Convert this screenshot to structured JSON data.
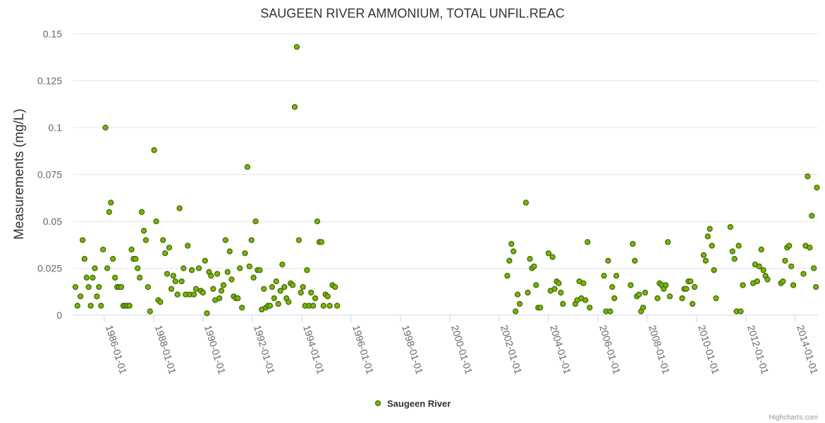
{
  "chart_data": {
    "type": "scatter",
    "title": "SAUGEEN RIVER AMMONIUM, TOTAL UNFIL.REAC",
    "ylabel": "Measurements (mg/L)",
    "xlabel": "",
    "ylim": [
      0,
      0.15
    ],
    "xlim": [
      "1984-10-01",
      "2014-12-01"
    ],
    "y_ticks": [
      "0",
      "0.025",
      "0.05",
      "0.075",
      "0.1",
      "0.125",
      "0.15"
    ],
    "x_ticks": [
      "1986-01-01",
      "1988-01-01",
      "1990-01-01",
      "1992-01-01",
      "1994-01-01",
      "1996-01-01",
      "1998-01-01",
      "2000-01-01",
      "2002-01-01",
      "2004-01-01",
      "2006-01-01",
      "2008-01-01",
      "2010-01-01",
      "2012-01-01",
      "2014-01-01"
    ],
    "grid": true,
    "legend_position": "bottom-center",
    "series": [
      {
        "name": "Saugeen River",
        "color": "#7cb50a",
        "edge_color": "#3f6b00",
        "points": [
          [
            "1984-11-01",
            0.015
          ],
          [
            "1984-12-01",
            0.005
          ],
          [
            "1985-01-15",
            0.01
          ],
          [
            "1985-02-15",
            0.04
          ],
          [
            "1985-03-15",
            0.03
          ],
          [
            "1985-04-15",
            0.02
          ],
          [
            "1985-05-15",
            0.015
          ],
          [
            "1985-06-15",
            0.005
          ],
          [
            "1985-07-15",
            0.02
          ],
          [
            "1985-08-15",
            0.025
          ],
          [
            "1985-09-15",
            0.01
          ],
          [
            "1985-10-15",
            0.015
          ],
          [
            "1985-11-15",
            0.005
          ],
          [
            "1985-12-15",
            0.035
          ],
          [
            "1986-01-20",
            0.1
          ],
          [
            "1986-02-15",
            0.025
          ],
          [
            "1986-03-15",
            0.055
          ],
          [
            "1986-04-10",
            0.06
          ],
          [
            "1986-05-10",
            0.03
          ],
          [
            "1986-06-10",
            0.02
          ],
          [
            "1986-07-10",
            0.015
          ],
          [
            "1986-08-10",
            0.015
          ],
          [
            "1986-09-10",
            0.015
          ],
          [
            "1986-10-10",
            0.005
          ],
          [
            "1986-11-10",
            0.005
          ],
          [
            "1986-12-10",
            0.005
          ],
          [
            "1987-01-10",
            0.005
          ],
          [
            "1987-02-10",
            0.035
          ],
          [
            "1987-03-10",
            0.03
          ],
          [
            "1987-04-10",
            0.03
          ],
          [
            "1987-05-10",
            0.025
          ],
          [
            "1987-06-10",
            0.02
          ],
          [
            "1987-07-10",
            0.055
          ],
          [
            "1987-08-10",
            0.045
          ],
          [
            "1987-09-10",
            0.04
          ],
          [
            "1987-10-10",
            0.015
          ],
          [
            "1987-11-10",
            0.002
          ],
          [
            "1988-01-10",
            0.088
          ],
          [
            "1988-02-10",
            0.05
          ],
          [
            "1988-03-10",
            0.008
          ],
          [
            "1988-04-10",
            0.007
          ],
          [
            "1988-05-20",
            0.04
          ],
          [
            "1988-06-20",
            0.033
          ],
          [
            "1988-07-20",
            0.022
          ],
          [
            "1988-08-20",
            0.036
          ],
          [
            "1988-09-20",
            0.014
          ],
          [
            "1988-10-20",
            0.021
          ],
          [
            "1988-11-20",
            0.018
          ],
          [
            "1988-12-20",
            0.011
          ],
          [
            "1989-01-20",
            0.057
          ],
          [
            "1989-02-20",
            0.018
          ],
          [
            "1989-03-20",
            0.025
          ],
          [
            "1989-04-20",
            0.011
          ],
          [
            "1989-05-20",
            0.037
          ],
          [
            "1989-06-20",
            0.011
          ],
          [
            "1989-07-20",
            0.024
          ],
          [
            "1989-08-20",
            0.011
          ],
          [
            "1989-09-20",
            0.014
          ],
          [
            "1989-11-01",
            0.025
          ],
          [
            "1989-12-01",
            0.013
          ],
          [
            "1990-01-01",
            0.012
          ],
          [
            "1990-02-01",
            0.029
          ],
          [
            "1990-03-01",
            0.001
          ],
          [
            "1990-04-01",
            0.023
          ],
          [
            "1990-05-01",
            0.021
          ],
          [
            "1990-06-01",
            0.014
          ],
          [
            "1990-07-01",
            0.008
          ],
          [
            "1990-08-01",
            0.022
          ],
          [
            "1990-09-01",
            0.009
          ],
          [
            "1990-10-01",
            0.013
          ],
          [
            "1990-11-01",
            0.016
          ],
          [
            "1990-12-01",
            0.04
          ],
          [
            "1991-01-01",
            0.023
          ],
          [
            "1991-02-01",
            0.034
          ],
          [
            "1991-03-01",
            0.019
          ],
          [
            "1991-04-01",
            0.01
          ],
          [
            "1991-05-01",
            0.009
          ],
          [
            "1991-06-01",
            0.009
          ],
          [
            "1991-07-01",
            0.025
          ],
          [
            "1991-08-01",
            0.004
          ],
          [
            "1991-09-15",
            0.033
          ],
          [
            "1991-10-20",
            0.079
          ],
          [
            "1991-11-20",
            0.026
          ],
          [
            "1991-12-20",
            0.04
          ],
          [
            "1992-01-20",
            0.02
          ],
          [
            "1992-02-20",
            0.05
          ],
          [
            "1992-03-20",
            0.024
          ],
          [
            "1992-04-20",
            0.024
          ],
          [
            "1992-05-20",
            0.003
          ],
          [
            "1992-06-20",
            0.014
          ],
          [
            "1992-07-20",
            0.004
          ],
          [
            "1992-08-20",
            0.005
          ],
          [
            "1992-09-20",
            0.005
          ],
          [
            "1992-10-20",
            0.015
          ],
          [
            "1992-11-20",
            0.009
          ],
          [
            "1992-12-20",
            0.018
          ],
          [
            "1993-01-20",
            0.006
          ],
          [
            "1993-02-20",
            0.013
          ],
          [
            "1993-03-20",
            0.027
          ],
          [
            "1993-04-20",
            0.015
          ],
          [
            "1993-05-20",
            0.009
          ],
          [
            "1993-06-20",
            0.007
          ],
          [
            "1993-07-20",
            0.017
          ],
          [
            "1993-08-20",
            0.016
          ],
          [
            "1993-09-20",
            0.111
          ],
          [
            "1993-10-20",
            0.143
          ],
          [
            "1993-11-20",
            0.04
          ],
          [
            "1993-12-20",
            0.012
          ],
          [
            "1994-01-20",
            0.015
          ],
          [
            "1994-02-20",
            0.005
          ],
          [
            "1994-03-20",
            0.024
          ],
          [
            "1994-04-20",
            0.005
          ],
          [
            "1994-05-20",
            0.012
          ],
          [
            "1994-06-20",
            0.005
          ],
          [
            "1994-07-20",
            0.009
          ],
          [
            "1994-08-20",
            0.05
          ],
          [
            "1994-09-20",
            0.039
          ],
          [
            "1994-10-20",
            0.039
          ],
          [
            "1994-11-20",
            0.005
          ],
          [
            "1994-12-20",
            0.011
          ],
          [
            "1995-01-20",
            0.01
          ],
          [
            "1995-02-20",
            0.005
          ],
          [
            "1995-04-01",
            0.016
          ],
          [
            "1995-05-10",
            0.015
          ],
          [
            "1995-06-10",
            0.005
          ],
          [
            "2002-05-01",
            0.021
          ],
          [
            "2002-06-01",
            0.029
          ],
          [
            "2002-07-01",
            0.038
          ],
          [
            "2002-08-01",
            0.034
          ],
          [
            "2002-09-01",
            0.002
          ],
          [
            "2002-10-01",
            0.011
          ],
          [
            "2002-11-01",
            0.006
          ],
          [
            "2003-02-01",
            0.06
          ],
          [
            "2003-03-01",
            0.012
          ],
          [
            "2003-04-01",
            0.03
          ],
          [
            "2003-05-01",
            0.025
          ],
          [
            "2003-06-01",
            0.026
          ],
          [
            "2003-07-01",
            0.016
          ],
          [
            "2003-08-01",
            0.004
          ],
          [
            "2003-09-01",
            0.004
          ],
          [
            "2004-01-01",
            0.033
          ],
          [
            "2004-02-01",
            0.013
          ],
          [
            "2004-03-01",
            0.031
          ],
          [
            "2004-04-01",
            0.014
          ],
          [
            "2004-05-01",
            0.018
          ],
          [
            "2004-06-01",
            0.017
          ],
          [
            "2004-07-01",
            0.012
          ],
          [
            "2004-08-01",
            0.006
          ],
          [
            "2005-02-01",
            0.006
          ],
          [
            "2005-03-01",
            0.008
          ],
          [
            "2005-04-01",
            0.018
          ],
          [
            "2005-05-01",
            0.009
          ],
          [
            "2005-06-01",
            0.017
          ],
          [
            "2005-07-01",
            0.008
          ],
          [
            "2005-08-01",
            0.039
          ],
          [
            "2005-09-01",
            0.004
          ],
          [
            "2006-04-01",
            0.021
          ],
          [
            "2006-05-01",
            0.002
          ],
          [
            "2006-06-01",
            0.029
          ],
          [
            "2006-07-01",
            0.002
          ],
          [
            "2006-08-01",
            0.015
          ],
          [
            "2006-09-01",
            0.009
          ],
          [
            "2006-10-01",
            0.021
          ],
          [
            "2007-05-01",
            0.016
          ],
          [
            "2007-06-01",
            0.038
          ],
          [
            "2007-07-01",
            0.029
          ],
          [
            "2007-08-01",
            0.01
          ],
          [
            "2007-09-01",
            0.011
          ],
          [
            "2007-10-01",
            0.002
          ],
          [
            "2007-11-01",
            0.004
          ],
          [
            "2007-12-01",
            0.012
          ],
          [
            "2008-06-01",
            0.009
          ],
          [
            "2008-07-01",
            0.017
          ],
          [
            "2008-08-01",
            0.016
          ],
          [
            "2008-09-01",
            0.014
          ],
          [
            "2008-10-01",
            0.016
          ],
          [
            "2008-11-01",
            0.039
          ],
          [
            "2008-12-01",
            0.01
          ],
          [
            "2009-06-01",
            0.009
          ],
          [
            "2009-07-01",
            0.014
          ],
          [
            "2009-08-01",
            0.014
          ],
          [
            "2009-09-01",
            0.018
          ],
          [
            "2009-10-01",
            0.018
          ],
          [
            "2009-11-01",
            0.006
          ],
          [
            "2009-12-01",
            0.015
          ],
          [
            "2010-04-15",
            0.032
          ],
          [
            "2010-05-15",
            0.029
          ],
          [
            "2010-06-15",
            0.042
          ],
          [
            "2010-07-15",
            0.046
          ],
          [
            "2010-08-15",
            0.037
          ],
          [
            "2010-09-15",
            0.024
          ],
          [
            "2010-10-15",
            0.009
          ],
          [
            "2011-05-15",
            0.047
          ],
          [
            "2011-06-15",
            0.034
          ],
          [
            "2011-07-15",
            0.03
          ],
          [
            "2011-08-15",
            0.002
          ],
          [
            "2011-09-15",
            0.037
          ],
          [
            "2011-10-15",
            0.002
          ],
          [
            "2011-11-15",
            0.016
          ],
          [
            "2012-04-15",
            0.017
          ],
          [
            "2012-05-15",
            0.027
          ],
          [
            "2012-06-15",
            0.018
          ],
          [
            "2012-07-15",
            0.026
          ],
          [
            "2012-08-15",
            0.035
          ],
          [
            "2012-09-15",
            0.024
          ],
          [
            "2012-10-15",
            0.021
          ],
          [
            "2012-11-15",
            0.019
          ],
          [
            "2013-06-01",
            0.017
          ],
          [
            "2013-07-01",
            0.018
          ],
          [
            "2013-08-01",
            0.029
          ],
          [
            "2013-09-01",
            0.036
          ],
          [
            "2013-10-01",
            0.037
          ],
          [
            "2013-11-01",
            0.026
          ],
          [
            "2013-12-01",
            0.016
          ],
          [
            "2014-05-01",
            0.022
          ],
          [
            "2014-06-01",
            0.037
          ],
          [
            "2014-07-01",
            0.074
          ],
          [
            "2014-08-01",
            0.036
          ],
          [
            "2014-09-01",
            0.053
          ],
          [
            "2014-10-01",
            0.025
          ],
          [
            "2014-11-01",
            0.015
          ],
          [
            "2014-11-15",
            0.068
          ]
        ]
      }
    ],
    "credits": "Highcharts.com"
  }
}
